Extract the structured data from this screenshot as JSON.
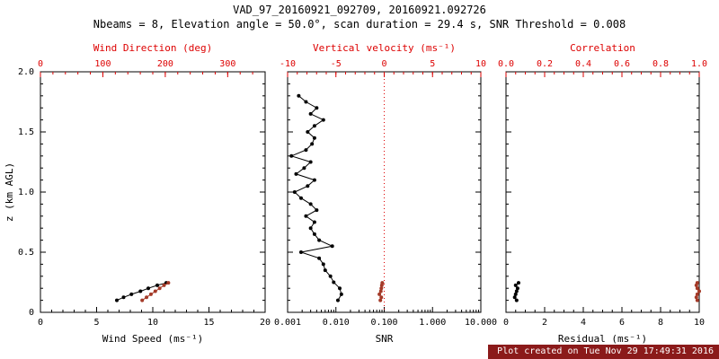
{
  "header": {
    "title": "VAD_97_20160921_092709, 20160921.092726",
    "subtitle": "Nbeams = 8, Elevation angle = 50.0°, scan duration = 29.4 s, SNR Threshold = 0.008"
  },
  "footer": {
    "created": "Plot created on Tue Nov 29 17:49:31 2016",
    "bg": "#8b1a1a",
    "fg": "#ffffff"
  },
  "colors": {
    "axis": "#000000",
    "secondary": "#dd0000",
    "red_series": "#a43a28"
  },
  "yaxis": {
    "label": "z (km AGL)",
    "lim": [
      0,
      2
    ],
    "ticks": [
      0,
      0.5,
      1,
      1.5,
      2
    ],
    "tick_labels": [
      "0",
      "0.5",
      "1.0",
      "1.5",
      "2.0"
    ],
    "minor_div": 5
  },
  "chart_data": [
    {
      "name": "wind",
      "type": "line",
      "bottom_axis": {
        "label": "Wind Speed (ms⁻¹)",
        "lim": [
          0,
          20
        ],
        "ticks": [
          0,
          5,
          10,
          15,
          20
        ],
        "tick_labels": [
          "0",
          "5",
          "10",
          "15",
          "20"
        ],
        "minor_div": 5
      },
      "top_axis": {
        "label": "Wind Direction (deg)",
        "lim": [
          0,
          360
        ],
        "ticks": [
          0,
          100,
          200,
          300
        ],
        "tick_labels": [
          "0",
          "100",
          "200",
          "300"
        ],
        "minor_div": 5
      },
      "series": [
        {
          "name": "wind-speed",
          "axis": "bottom",
          "color": "#000000",
          "points": [
            [
              6.8,
              0.1
            ],
            [
              7.4,
              0.125
            ],
            [
              8.1,
              0.15
            ],
            [
              8.9,
              0.175
            ],
            [
              9.6,
              0.2
            ],
            [
              10.4,
              0.225
            ],
            [
              11.2,
              0.245
            ]
          ]
        },
        {
          "name": "wind-direction",
          "axis": "top",
          "color": "#a43a28",
          "points": [
            [
              163,
              0.1
            ],
            [
              170,
              0.125
            ],
            [
              177,
              0.15
            ],
            [
              184,
              0.175
            ],
            [
              191,
              0.2
            ],
            [
              198,
              0.225
            ],
            [
              205,
              0.245
            ]
          ]
        }
      ]
    },
    {
      "name": "snr",
      "type": "line",
      "bottom_axis": {
        "label": "SNR",
        "scale": "log",
        "lim": [
          0.001,
          10
        ],
        "ticks": [
          0.001,
          0.01,
          0.1,
          1,
          10
        ],
        "tick_labels": [
          "0.001",
          "0.010",
          "0.100",
          "1.000",
          "10.000"
        ]
      },
      "top_axis": {
        "label": "Vertical velocity (ms⁻¹)",
        "lim": [
          -10,
          10
        ],
        "ticks": [
          -10,
          -5,
          0,
          5,
          10
        ],
        "tick_labels": [
          "-10",
          "-5",
          "0",
          "5",
          "10"
        ],
        "minor_div": 5
      },
      "ref_lines": [
        {
          "axis": "top",
          "value": 0,
          "color": "#dd0000",
          "style": "dotted"
        }
      ],
      "series": [
        {
          "name": "snr-profile",
          "axis": "bottom",
          "color": "#000000",
          "points": [
            [
              0.011,
              0.1
            ],
            [
              0.013,
              0.15
            ],
            [
              0.012,
              0.2
            ],
            [
              0.009,
              0.25
            ],
            [
              0.0077,
              0.3
            ],
            [
              0.006,
              0.35
            ],
            [
              0.0055,
              0.4
            ],
            [
              0.0045,
              0.45
            ],
            [
              0.0019,
              0.5
            ],
            [
              0.0084,
              0.55
            ],
            [
              0.0045,
              0.6
            ],
            [
              0.0036,
              0.65
            ],
            [
              0.003,
              0.7
            ],
            [
              0.0036,
              0.75
            ],
            [
              0.0024,
              0.8
            ],
            [
              0.004,
              0.85
            ],
            [
              0.003,
              0.9
            ],
            [
              0.0019,
              0.95
            ],
            [
              0.0014,
              1.0
            ],
            [
              0.0026,
              1.05
            ],
            [
              0.0036,
              1.1
            ],
            [
              0.0015,
              1.15
            ],
            [
              0.0022,
              1.2
            ],
            [
              0.003,
              1.25
            ],
            [
              0.0012,
              1.3
            ],
            [
              0.0024,
              1.35
            ],
            [
              0.0032,
              1.4
            ],
            [
              0.0036,
              1.45
            ],
            [
              0.0026,
              1.5
            ],
            [
              0.0036,
              1.55
            ],
            [
              0.0055,
              1.6
            ],
            [
              0.003,
              1.65
            ],
            [
              0.004,
              1.7
            ],
            [
              0.0024,
              1.75
            ],
            [
              0.0017,
              1.8
            ]
          ]
        },
        {
          "name": "vertical-velocity",
          "axis": "top",
          "color": "#a43a28",
          "points": [
            [
              -0.4,
              0.1
            ],
            [
              -0.3,
              0.125
            ],
            [
              -0.5,
              0.15
            ],
            [
              -0.35,
              0.175
            ],
            [
              -0.3,
              0.2
            ],
            [
              -0.25,
              0.225
            ],
            [
              -0.2,
              0.245
            ]
          ]
        }
      ]
    },
    {
      "name": "residual",
      "type": "line",
      "bottom_axis": {
        "label": "Residual (ms⁻¹)",
        "lim": [
          0,
          10
        ],
        "ticks": [
          0,
          2,
          4,
          6,
          8,
          10
        ],
        "tick_labels": [
          "0",
          "2",
          "4",
          "6",
          "8",
          "10"
        ],
        "minor_div": 4
      },
      "top_axis": {
        "label": "Correlation",
        "lim": [
          0,
          1
        ],
        "ticks": [
          0,
          0.2,
          0.4,
          0.6,
          0.8,
          1
        ],
        "tick_labels": [
          "0.0",
          "0.2",
          "0.4",
          "0.6",
          "0.8",
          "1.0"
        ],
        "minor_div": 4
      },
      "series": [
        {
          "name": "residual",
          "axis": "bottom",
          "color": "#000000",
          "points": [
            [
              0.55,
              0.1
            ],
            [
              0.45,
              0.125
            ],
            [
              0.5,
              0.15
            ],
            [
              0.55,
              0.175
            ],
            [
              0.6,
              0.2
            ],
            [
              0.5,
              0.225
            ],
            [
              0.65,
              0.245
            ]
          ]
        },
        {
          "name": "correlation",
          "axis": "top",
          "color": "#a43a28",
          "points": [
            [
              0.99,
              0.1
            ],
            [
              0.985,
              0.125
            ],
            [
              0.99,
              0.15
            ],
            [
              1.0,
              0.175
            ],
            [
              0.99,
              0.2
            ],
            [
              0.985,
              0.225
            ],
            [
              0.99,
              0.245
            ]
          ]
        }
      ]
    }
  ]
}
